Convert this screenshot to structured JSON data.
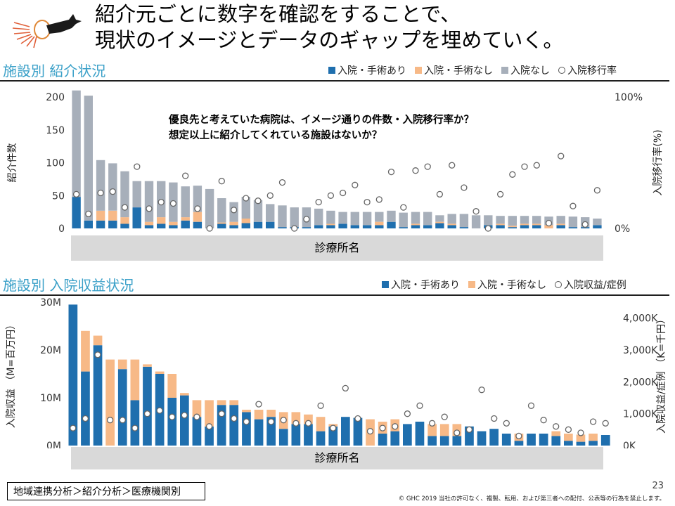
{
  "header": {
    "title": "紹介元ごとに数字を確認をすることで、\n現状のイメージとデータのギャップを埋めていく。"
  },
  "colors": {
    "surgery": "#1f6fae",
    "nosurgery": "#f7b987",
    "notadmitted": "#a7afba",
    "marker": "#ffffff"
  },
  "section1": {
    "title": "施設別 紹介状況",
    "legend": [
      "入院・手術あり",
      "入院・手術なし",
      "入院なし",
      "入院移行率"
    ],
    "annotation": "優良先と考えていた病院は、イメージ通りの件数・入院移行率か？\n想定以上に紹介してくれている施設はないか？",
    "band_label": "診療所名"
  },
  "section2": {
    "title": "施設別 入院収益状況",
    "legend": [
      "入院・手術あり",
      "入院・手術なし",
      "入院収益/症例"
    ],
    "band_label": "診療所名"
  },
  "chart_data": [
    {
      "type": "bar",
      "stacked": true,
      "ylabel": "紹介件数",
      "y2label": "入院移行率(%)",
      "ylim": [
        0,
        200
      ],
      "yticks": [
        "0",
        "50",
        "100",
        "150",
        "200"
      ],
      "y2lim": [
        0,
        100
      ],
      "y2ticks": [
        "0%",
        "100%"
      ],
      "xlabel": "診療所名",
      "series": [
        {
          "name": "入院・手術あり",
          "values": [
            48,
            12,
            12,
            12,
            7,
            32,
            5,
            7,
            5,
            12,
            10,
            0,
            7,
            5,
            8,
            10,
            10,
            2,
            2,
            2,
            5,
            5,
            7,
            5,
            5,
            5,
            10,
            2,
            5,
            5,
            8,
            5,
            2,
            0,
            5,
            5,
            2,
            5,
            5,
            0,
            5,
            2,
            2,
            5
          ]
        },
        {
          "name": "入院・手術なし",
          "values": [
            0,
            0,
            15,
            15,
            10,
            0,
            5,
            10,
            5,
            5,
            15,
            0,
            2,
            5,
            7,
            0,
            0,
            0,
            0,
            0,
            0,
            2,
            0,
            0,
            0,
            5,
            0,
            0,
            2,
            0,
            2,
            2,
            0,
            0,
            0,
            2,
            2,
            2,
            2,
            5,
            2,
            0,
            0,
            0
          ]
        },
        {
          "name": "入院なし",
          "values": [
            162,
            190,
            77,
            72,
            70,
            40,
            62,
            55,
            60,
            47,
            40,
            60,
            37,
            30,
            33,
            33,
            27,
            33,
            30,
            30,
            25,
            20,
            18,
            20,
            20,
            15,
            17,
            22,
            18,
            20,
            10,
            15,
            20,
            20,
            15,
            12,
            15,
            12,
            12,
            13,
            12,
            16,
            15,
            10
          ]
        },
        {
          "name": "入院移行率",
          "axis": "y2",
          "values": [
            26,
            11,
            27,
            28,
            16,
            47,
            15,
            20,
            19,
            40,
            15,
            0,
            36,
            14,
            23,
            21,
            25,
            35,
            0,
            7,
            20,
            25,
            27,
            33,
            20,
            22,
            43,
            16,
            44,
            47,
            26,
            48,
            31,
            13,
            0,
            26,
            41,
            47,
            48,
            4,
            55,
            17,
            3,
            29
          ]
        }
      ]
    },
    {
      "type": "bar",
      "stacked": true,
      "ylabel": "入院収益 （M=百万円）",
      "y2label": "入院収益/症例 （K=千円）",
      "ylim": [
        0,
        30
      ],
      "yticks": [
        "0M",
        "10M",
        "20M",
        "30M"
      ],
      "y2lim": [
        0,
        4500
      ],
      "y2ticks": [
        "0K",
        "1,000K",
        "2,000K",
        "3,000K",
        "4,000K"
      ],
      "xlabel": "診療所名",
      "series": [
        {
          "name": "入院・手術あり",
          "values": [
            29.5,
            15.5,
            21,
            0,
            16,
            9.5,
            16.5,
            15,
            10,
            10.5,
            6,
            4,
            8.5,
            8.5,
            7,
            5.5,
            6,
            3.5,
            4.5,
            4.5,
            3,
            4,
            6,
            5.8,
            0,
            2.5,
            3,
            4.5,
            5,
            2,
            2,
            2,
            4,
            3,
            3.5,
            2.5,
            1,
            2.5,
            2.5,
            2,
            1,
            0.8,
            1,
            2.2
          ]
        },
        {
          "name": "入院・手術なし",
          "values": [
            0,
            8.5,
            2,
            18,
            2,
            8.5,
            0.5,
            0.5,
            5,
            0.5,
            3.5,
            5.5,
            1,
            1,
            0.5,
            2,
            1.5,
            3.5,
            2.5,
            2,
            3,
            0.5,
            0,
            0,
            5.5,
            2.5,
            2.5,
            0,
            0,
            2.5,
            2.5,
            2.5,
            0,
            0,
            0,
            0,
            1.5,
            0,
            0,
            1,
            1.5,
            1.5,
            1.5,
            0
          ]
        },
        {
          "name": "入院収益/症例",
          "axis": "y2",
          "values": [
            550,
            850,
            2850,
            800,
            800,
            550,
            1000,
            1100,
            900,
            950,
            900,
            600,
            1000,
            850,
            750,
            1300,
            750,
            800,
            700,
            700,
            1250,
            550,
            1800,
            850,
            450,
            550,
            600,
            1000,
            1250,
            700,
            900,
            400,
            500,
            1750,
            850,
            700,
            300,
            1250,
            800,
            600,
            500,
            400,
            750,
            700
          ]
        }
      ]
    }
  ],
  "footer": {
    "breadcrumb": "地域連携分析＞紹介分析＞医療機関別",
    "page_number": "23",
    "copyright": "© GHC 2019 当社の許可なく、複製、転用、および第三者への配付、公表等の行為を禁止します。"
  }
}
